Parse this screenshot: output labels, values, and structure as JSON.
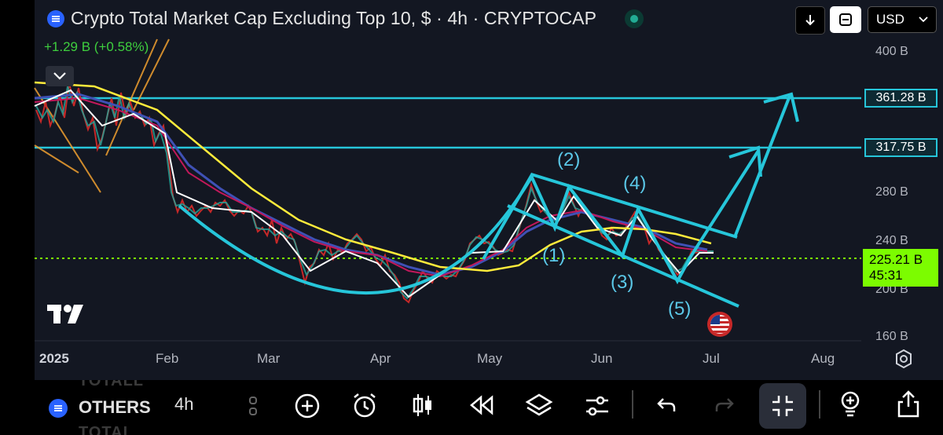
{
  "header": {
    "title": "Crypto Total Market Cap Excluding Top 10, $ · 4h · CRYPTOCAP",
    "change": "+1.29 B (+0.58%)",
    "currency": "USD"
  },
  "price_axis": {
    "ticks": [
      "400 B",
      "280 B",
      "240 B",
      "200 B",
      "160 B"
    ],
    "levels": [
      "361.28 B",
      "317.75 B"
    ],
    "current_price": "225.21 B",
    "countdown": "45:31"
  },
  "time_axis": {
    "ticks": [
      "2025",
      "Feb",
      "Mar",
      "Apr",
      "May",
      "Jun",
      "Jul",
      "Aug"
    ]
  },
  "annotations": {
    "waves": [
      "(1)",
      "(2)",
      "(3)",
      "(4)",
      "(5)"
    ]
  },
  "toolbar": {
    "symbol": "OTHERS",
    "ghost_above": "TOTALL",
    "ghost_below": "TOTAL",
    "interval": "4h"
  },
  "colors": {
    "background": "#131722",
    "levels": "#26c6da",
    "current_price": "#7cfc00",
    "annotation": "#5bc8e8",
    "ma_yellow": "#ffeb3b"
  },
  "icons": [
    "download-icon",
    "expand-icon",
    "chevron-down-icon",
    "plus-circle-icon",
    "alarm-icon",
    "candles-icon",
    "replay-icon",
    "layers-icon",
    "settings-sliders-icon",
    "undo-icon",
    "redo-icon",
    "fullscreen-icon",
    "bulb-icon",
    "share-icon",
    "gear-icon"
  ]
}
